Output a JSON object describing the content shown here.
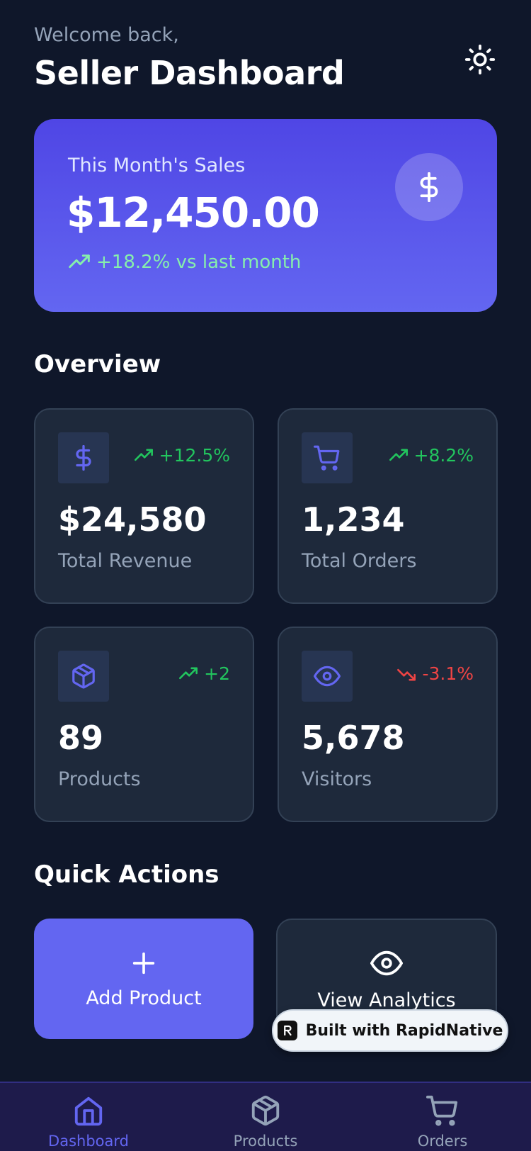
{
  "header": {
    "welcome": "Welcome back,",
    "title": "Seller Dashboard",
    "theme_icon": "sun-icon"
  },
  "sales": {
    "label": "This Month's Sales",
    "amount": "$12,450.00",
    "trend": "+18.2% vs last month",
    "icon": "dollar-icon"
  },
  "overview": {
    "title": "Overview",
    "stats": [
      {
        "icon": "dollar-icon",
        "trend": "+12.5%",
        "direction": "up",
        "value": "$24,580",
        "label": "Total Revenue"
      },
      {
        "icon": "cart-icon",
        "trend": "+8.2%",
        "direction": "up",
        "value": "1,234",
        "label": "Total Orders"
      },
      {
        "icon": "package-icon",
        "trend": "+2",
        "direction": "up",
        "value": "89",
        "label": "Products"
      },
      {
        "icon": "eye-icon",
        "trend": "-3.1%",
        "direction": "down",
        "value": "5,678",
        "label": "Visitors"
      }
    ]
  },
  "quick_actions": {
    "title": "Quick Actions",
    "add_product": "Add Product",
    "view_analytics": "View Analytics"
  },
  "badge": {
    "text": "Built with RapidNative"
  },
  "nav": {
    "items": [
      {
        "label": "Dashboard",
        "icon": "home-icon",
        "active": true
      },
      {
        "label": "Products",
        "icon": "package-icon",
        "active": false
      },
      {
        "label": "Orders",
        "icon": "cart-icon",
        "active": false
      }
    ]
  },
  "colors": {
    "background": "#0f172a",
    "card": "#1e293b",
    "accent": "#6366f1",
    "positive": "#22c55e",
    "negative": "#ef4444"
  }
}
